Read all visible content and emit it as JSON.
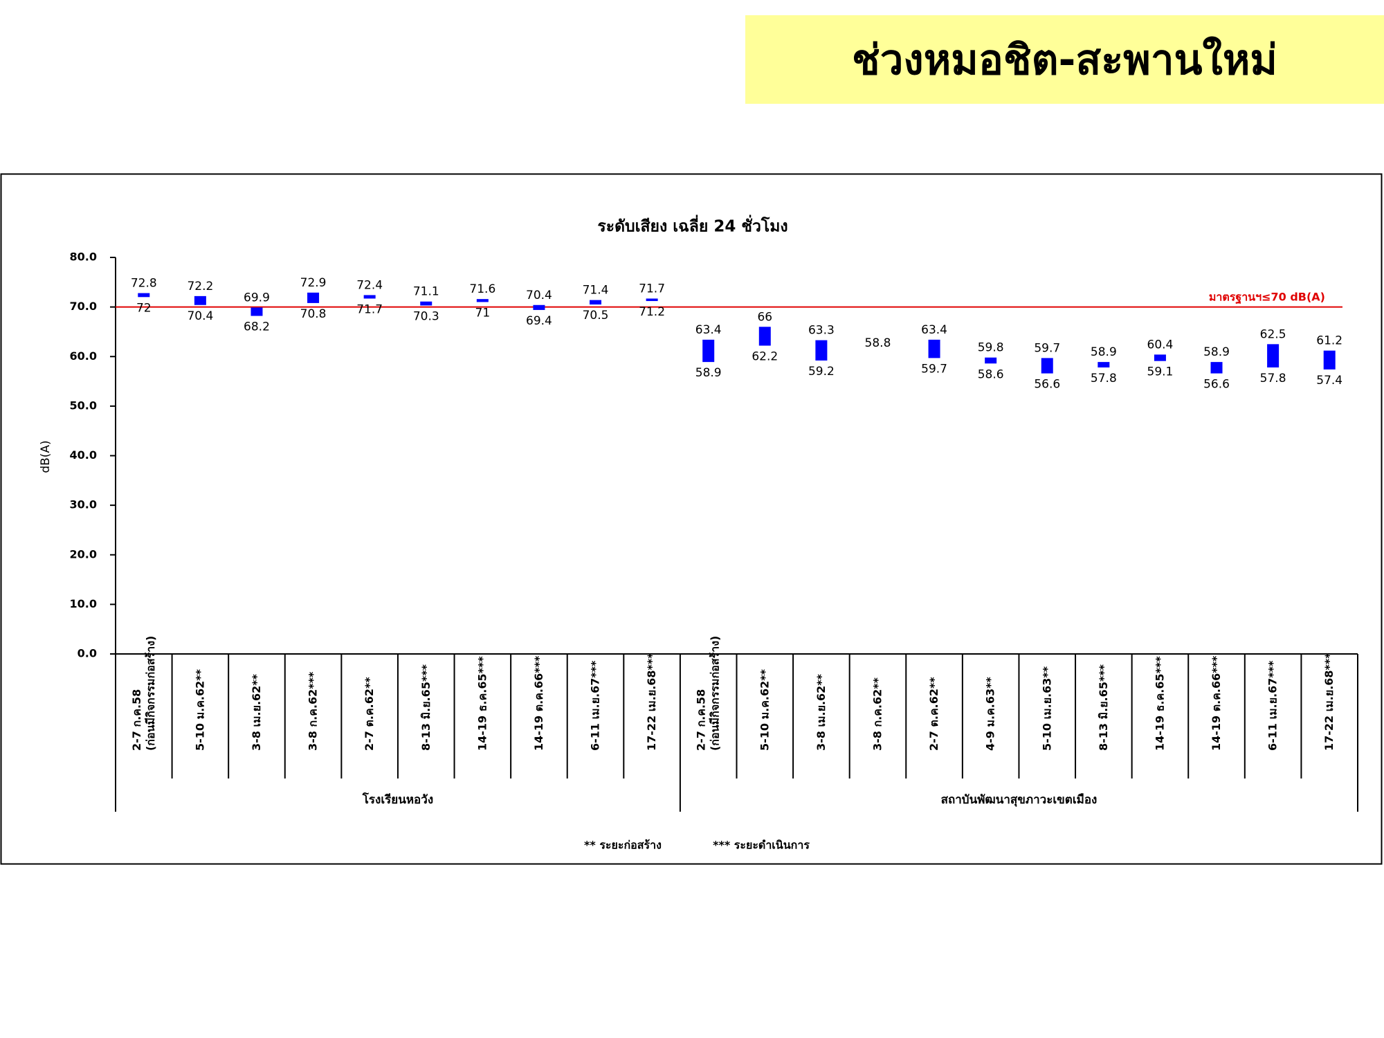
{
  "header": {
    "title": "ช่วงหมอชิต-สะพานใหม่"
  },
  "chart_data": {
    "type": "floating-bar",
    "title": "ระดับเสียง เฉลี่ย 24 ชั่วโมง",
    "y_label": "dB(A)",
    "ylim": [
      0,
      80
    ],
    "yticks": [
      {
        "value": 0,
        "label": "0.0"
      },
      {
        "value": 10,
        "label": "10.0"
      },
      {
        "value": 20,
        "label": "20.0"
      },
      {
        "value": 30,
        "label": "30.0"
      },
      {
        "value": 40,
        "label": "40.0"
      },
      {
        "value": 50,
        "label": "50.0"
      },
      {
        "value": 60,
        "label": "60.0"
      },
      {
        "value": 70,
        "label": "70.0"
      },
      {
        "value": 80,
        "label": "80.0"
      }
    ],
    "color": "#0000ff",
    "standard": {
      "value": 70,
      "label": "มาตรฐานฯ≤70 dB(A)",
      "color": "#e00000"
    },
    "groups": [
      {
        "name": "โรงเรียนหอวัง",
        "categories": [
          "2-7 ก.ค.58\n(ก่อนมีกิจกรรมก่อสร้าง)",
          "5-10 ม.ค.62**",
          "3-8 เม.ย.62**",
          "3-8 ก.ค.62***",
          "2-7 ต.ค.62**",
          "8-13 มิ.ย.65***",
          "14-19 ธ.ค.65***",
          "14-19 ต.ค.66***",
          "6-11 เม.ย.67***",
          "17-22 เม.ย.68***"
        ],
        "highs": [
          72.8,
          72.2,
          69.9,
          72.9,
          72.4,
          71.1,
          71.6,
          70.4,
          71.4,
          71.7
        ],
        "lows": [
          72.0,
          70.4,
          68.2,
          70.8,
          71.7,
          70.3,
          71.0,
          69.4,
          70.5,
          71.2
        ]
      },
      {
        "name": "สถาบันพัฒนาสุขภาวะเขตเมือง",
        "categories": [
          "2-7 ก.ค.58\n(ก่อนมีกิจกรรมก่อสร้าง)",
          "5-10 ม.ค.62**",
          "3-8 เม.ย.62**",
          "3-8 ก.ค.62**",
          "2-7 ต.ค.62**",
          "4-9 ม.ค.63**",
          "5-10 เม.ย.63**",
          "8-13 มิ.ย.65***",
          "14-19 ธ.ค.65***",
          "14-19 ต.ค.66***",
          "6-11 เม.ย.67***",
          "17-22 เม.ย.68***"
        ],
        "highs": [
          63.4,
          66.0,
          63.3,
          58.8,
          63.4,
          59.8,
          59.7,
          58.9,
          60.4,
          58.9,
          62.5,
          61.2
        ],
        "lows": [
          58.9,
          62.2,
          59.2,
          null,
          59.7,
          58.6,
          56.6,
          57.8,
          59.1,
          56.6,
          57.8,
          57.4
        ]
      }
    ],
    "notes": [
      "** ระยะก่อสร้าง",
      "*** ระยะดำเนินการ"
    ]
  }
}
